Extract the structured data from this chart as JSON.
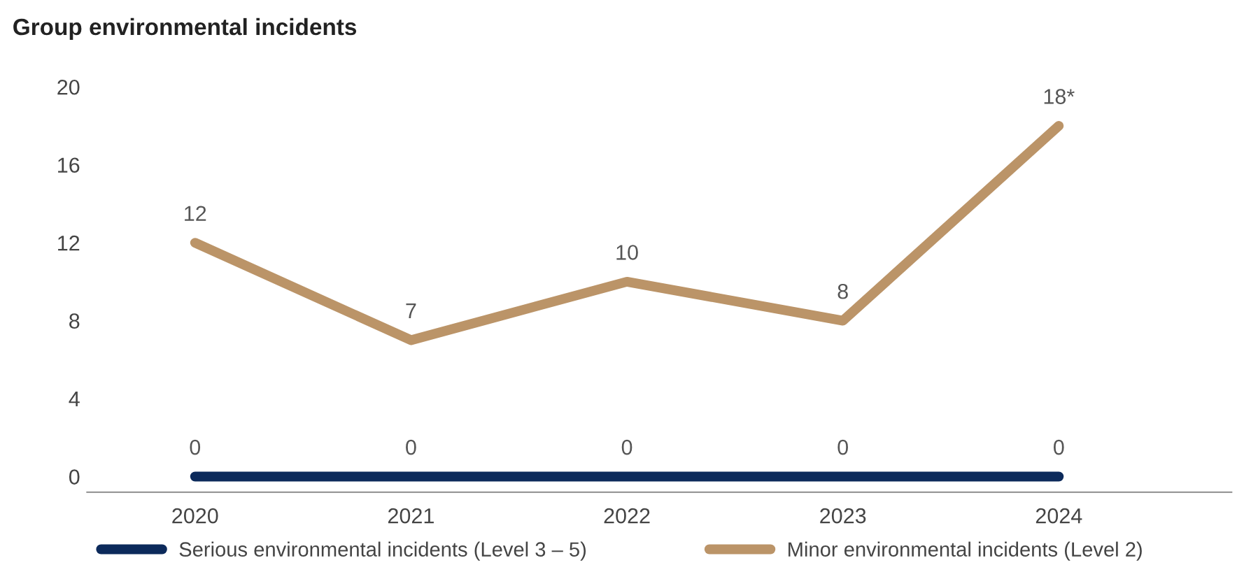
{
  "chart_data": {
    "type": "line",
    "title": "Group environmental incidents",
    "categories": [
      "2020",
      "2021",
      "2022",
      "2023",
      "2024"
    ],
    "series": [
      {
        "name": "Serious environmental incidents (Level 3 – 5)",
        "color": "#0c2a5b",
        "values": [
          0,
          0,
          0,
          0,
          0
        ],
        "value_labels": [
          "0",
          "0",
          "0",
          "0",
          "0"
        ]
      },
      {
        "name": "Minor environmental incidents (Level 2)",
        "color": "#bb9468",
        "values": [
          12,
          7,
          10,
          8,
          18
        ],
        "value_labels": [
          "12",
          "7",
          "10",
          "8",
          "18*"
        ]
      }
    ],
    "ylim": [
      -0.8,
      20
    ],
    "yticks": [
      0,
      4,
      8,
      12,
      16,
      20
    ],
    "grid": false,
    "legend": "bottom",
    "marker": "none",
    "line_style": "solid"
  }
}
